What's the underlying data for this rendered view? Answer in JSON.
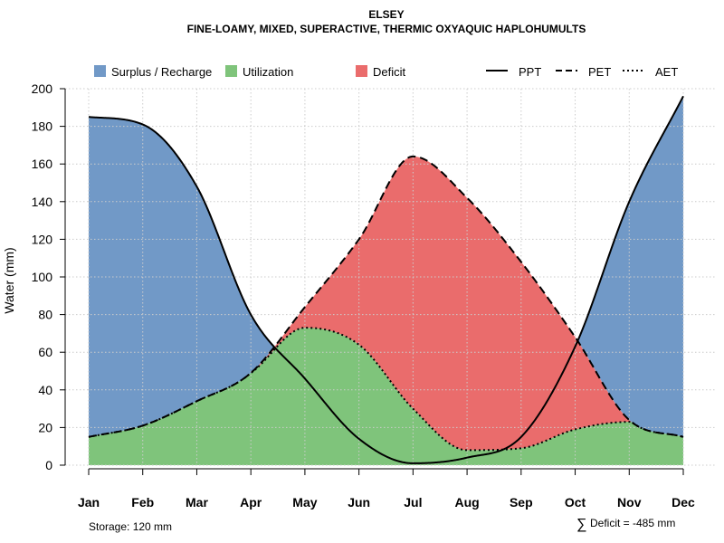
{
  "chart_data": {
    "type": "area",
    "title": "ELSEY",
    "subtitle": "FINE-LOAMY, MIXED, SUPERACTIVE, THERMIC OXYAQUIC HAPLOHUMULTS",
    "xlabel": "",
    "ylabel": "Water (mm)",
    "ylim": [
      0,
      200
    ],
    "yticks": [
      "0",
      "20",
      "40",
      "60",
      "80",
      "100",
      "120",
      "140",
      "160",
      "180",
      "200"
    ],
    "categories": [
      "Jan",
      "Feb",
      "Mar",
      "Apr",
      "May",
      "Jun",
      "Jul",
      "Aug",
      "Sep",
      "Oct",
      "Nov",
      "Dec"
    ],
    "series": [
      {
        "name": "PPT",
        "line": "solid",
        "values": [
          185,
          181,
          148,
          80,
          46,
          14,
          1,
          4,
          15,
          63,
          140,
          196
        ]
      },
      {
        "name": "PET",
        "line": "dashed",
        "values": [
          15,
          21,
          34,
          49,
          84,
          120,
          164,
          142,
          108,
          68,
          24,
          15
        ]
      },
      {
        "name": "AET",
        "line": "dotted",
        "values": [
          15,
          21,
          34,
          49,
          73,
          64,
          30,
          8,
          9,
          19,
          23,
          15
        ]
      }
    ],
    "legend": [
      {
        "label": "Surplus / Recharge",
        "kind": "fill",
        "color": "#7199c7"
      },
      {
        "label": "Utilization",
        "kind": "fill",
        "color": "#7fc47b"
      },
      {
        "label": "Deficit",
        "kind": "fill",
        "color": "#ea6c6c"
      },
      {
        "label": "PPT",
        "kind": "line",
        "dash": "solid"
      },
      {
        "label": "PET",
        "kind": "line",
        "dash": "dashed"
      },
      {
        "label": "AET",
        "kind": "line",
        "dash": "dotted"
      }
    ],
    "legend_position": "top",
    "grid": true,
    "colors": {
      "surplus": "#7199c7",
      "utilization": "#7fc47b",
      "deficit": "#ea6c6c",
      "grid": "#cccccc"
    },
    "annotations": {
      "storage": "Storage: 120 mm",
      "deficit_symbol": "∑",
      "deficit": "Deficit = -485 mm"
    }
  }
}
